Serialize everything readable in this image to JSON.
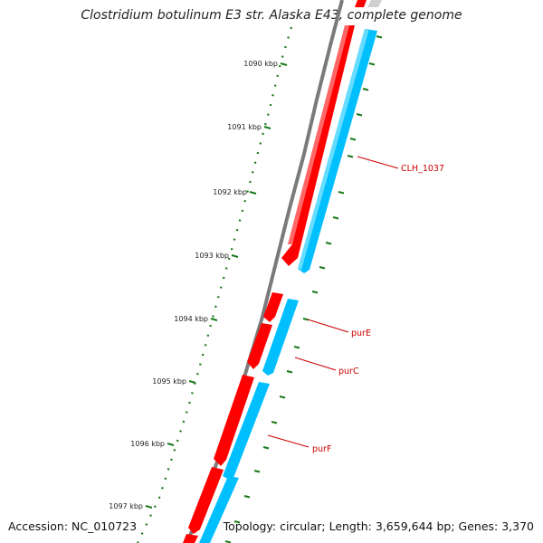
{
  "title": "Clostridium botulinum E3 str. Alaska E43, complete genome",
  "footer": {
    "accession": "Accession: NC_010723",
    "topology": "Topology: circular; Length: 3,659,644 bp; Genes: 3,370"
  },
  "colors": {
    "backbone": "#7a7a7a",
    "forward_strand": "#ff0000",
    "reverse_strand": "#00bfff",
    "tick": "#1a7a1a",
    "label": "#cc0000"
  },
  "scale": {
    "unit": "kbp",
    "labels": [
      "1090 kbp",
      "1091 kbp",
      "1092 kbp",
      "1093 kbp",
      "1094 kbp",
      "1095 kbp",
      "1096 kbp",
      "1097 kbp"
    ]
  },
  "genes": [
    {
      "label": "CLH_1037"
    },
    {
      "label": "purE"
    },
    {
      "label": "purC"
    },
    {
      "label": "purF"
    }
  ]
}
